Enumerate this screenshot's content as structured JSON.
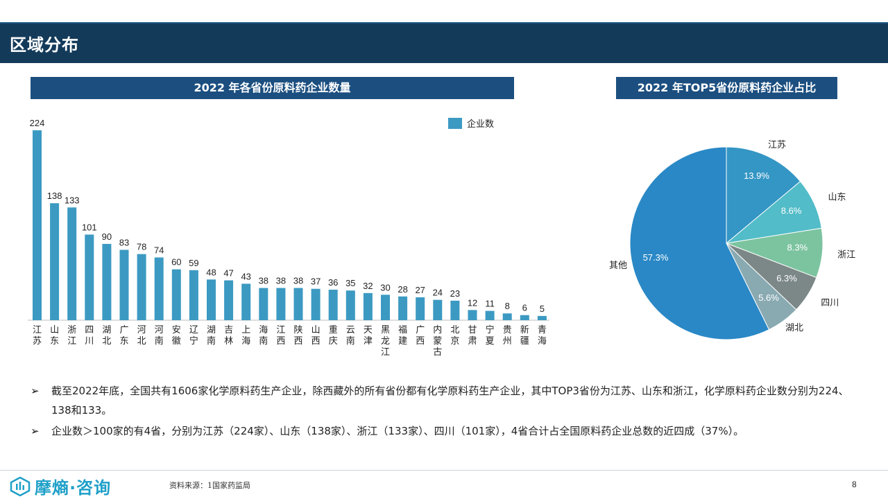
{
  "header": {
    "title": "区域分布"
  },
  "bar_section": {
    "title": "2022 年各省份原料药企业数量"
  },
  "pie_section": {
    "title": "2022 年TOP5省份原料药企业占比"
  },
  "colors": {
    "bar": "#3c9ac2",
    "header": "#143a5a",
    "title_bar": "#1c4f80"
  },
  "chart_data": [
    {
      "type": "bar",
      "legend": "企业数",
      "categories": [
        "江苏",
        "山东",
        "浙江",
        "四川",
        "湖北",
        "广东",
        "河北",
        "河南",
        "安徽",
        "辽宁",
        "湖南",
        "吉林",
        "上海",
        "海南",
        "江西",
        "陕西",
        "山西",
        "重庆",
        "云南",
        "天津",
        "黑龙江",
        "福建",
        "广西",
        "内蒙古",
        "北京",
        "甘肃",
        "宁夏",
        "贵州",
        "新疆",
        "青海"
      ],
      "values": [
        224,
        138,
        133,
        101,
        90,
        83,
        78,
        74,
        60,
        59,
        48,
        47,
        43,
        38,
        38,
        38,
        37,
        36,
        35,
        32,
        30,
        28,
        27,
        24,
        23,
        12,
        11,
        8,
        6,
        5
      ],
      "ylim": [
        0,
        224
      ]
    },
    {
      "type": "pie",
      "slices": [
        {
          "name": "江苏",
          "label": "13.9%",
          "value": 13.9,
          "color": "#3496c4"
        },
        {
          "name": "山东",
          "label": "8.6%",
          "value": 8.6,
          "color": "#52bcc8"
        },
        {
          "name": "浙江",
          "label": "8.3%",
          "value": 8.3,
          "color": "#7cc4a0"
        },
        {
          "name": "四川",
          "label": "6.3%",
          "value": 6.3,
          "color": "#7c8787"
        },
        {
          "name": "湖北",
          "label": "5.6%",
          "value": 5.6,
          "color": "#8aaab2"
        },
        {
          "name": "其他",
          "label": "57.3%",
          "value": 57.3,
          "color": "#2a88c6"
        }
      ]
    }
  ],
  "bullets": [
    "截至2022年底，全国共有1606家化学原料药生产企业，除西藏外的所有省份都有化学原料药生产企业，其中TOP3省份为江苏、山东和浙江，化学原料药企业数分别为224、138和133。",
    "企业数＞100家的有4省，分别为江苏（224家）、山东（138家）、浙江（133家）、四川（101家），4省合计占全国原料药企业总数的近四成（37%）。"
  ],
  "bullet_marker": "➢",
  "footer": {
    "logo_text": "摩熵·咨询",
    "source": "资料来源：1国家药监局",
    "page_number": "8"
  }
}
